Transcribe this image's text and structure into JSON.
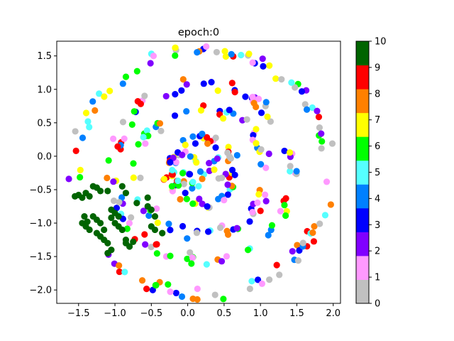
{
  "chart_data": {
    "type": "scatter",
    "title": "epoch:0",
    "xlabel": "",
    "ylabel": "",
    "xlim": [
      -1.8,
      2.1
    ],
    "ylim": [
      -2.2,
      1.72
    ],
    "xticks": [
      -1.5,
      -1.0,
      -0.5,
      0.0,
      0.5,
      1.0,
      1.5,
      2.0
    ],
    "xtick_labels": [
      "−1.5",
      "−1.0",
      "−0.5",
      "0.0",
      "0.5",
      "1.0",
      "1.5",
      "2.0"
    ],
    "yticks": [
      1.5,
      1.0,
      0.5,
      0.0,
      -0.5,
      -1.0,
      -1.5,
      -2.0
    ],
    "ytick_labels": [
      "1.5",
      "1.0",
      "0.5",
      "0.0",
      "−0.5",
      "−1.0",
      "−1.5",
      "−2.0"
    ],
    "grid": false,
    "colorbar": {
      "ticks": [
        "0",
        "1",
        "2",
        "3",
        "4",
        "5",
        "6",
        "7",
        "8",
        "9",
        "10"
      ],
      "colors": [
        "#c0c0c0",
        "#ff99ff",
        "#8000ff",
        "#0000ff",
        "#0080ff",
        "#55ffff",
        "#00ff00",
        "#ffff00",
        "#ff8000",
        "#ff0000",
        "#006400"
      ]
    },
    "cluster_class": 10,
    "cluster_points": [
      [
        -1.55,
        -0.6
      ],
      [
        -1.5,
        -0.58
      ],
      [
        -1.45,
        -0.62
      ],
      [
        -1.4,
        -0.55
      ],
      [
        -1.35,
        -0.6
      ],
      [
        -1.3,
        -0.45
      ],
      [
        -1.25,
        -0.47
      ],
      [
        -1.42,
        -0.9
      ],
      [
        -1.45,
        -1.0
      ],
      [
        -1.4,
        -1.05
      ],
      [
        -1.35,
        -1.1
      ],
      [
        -1.3,
        -0.9
      ],
      [
        -1.25,
        -1.15
      ],
      [
        -1.2,
        -1.2
      ],
      [
        -1.15,
        -1.25
      ],
      [
        -1.1,
        -1.3
      ],
      [
        -1.05,
        -1.4
      ],
      [
        -1.1,
        -1.45
      ],
      [
        -1.05,
        -0.8
      ],
      [
        -1.0,
        -0.85
      ],
      [
        -1.0,
        -1.0
      ],
      [
        -0.95,
        -1.05
      ],
      [
        -0.9,
        -1.1
      ],
      [
        -0.85,
        -1.3
      ],
      [
        -0.8,
        -1.35
      ],
      [
        -0.75,
        -1.28
      ],
      [
        -0.9,
        -0.45
      ],
      [
        -0.85,
        -0.55
      ],
      [
        -0.7,
        -0.7
      ],
      [
        -0.55,
        -0.75
      ],
      [
        -0.5,
        -0.8
      ],
      [
        -0.45,
        -0.9
      ],
      [
        -0.5,
        -1.05
      ],
      [
        -0.45,
        -1.1
      ],
      [
        -0.35,
        -1.15
      ],
      [
        -1.1,
        -0.52
      ],
      [
        -1.2,
        -0.52
      ],
      [
        -1.25,
        -0.95
      ],
      [
        -1.2,
        -1.0
      ],
      [
        -1.38,
        -0.98
      ],
      [
        -0.95,
        -0.9
      ],
      [
        -0.55,
        -0.62
      ],
      [
        -1.05,
        -0.92
      ],
      [
        -1.15,
        -1.1
      ],
      [
        -0.85,
        -1.25
      ]
    ]
  }
}
